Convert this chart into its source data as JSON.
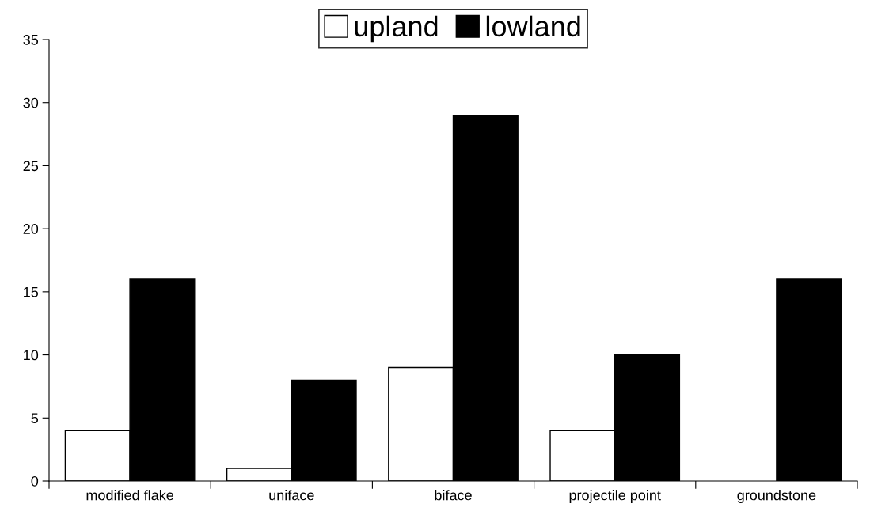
{
  "chart_data": {
    "type": "bar",
    "categories": [
      "modified flake",
      "uniface",
      "biface",
      "projectile point",
      "groundstone"
    ],
    "series": [
      {
        "name": "upland",
        "color": "#ffffff",
        "values": [
          4,
          1,
          9,
          4,
          0
        ]
      },
      {
        "name": "lowland",
        "color": "#000000",
        "values": [
          16,
          8,
          29,
          10,
          16
        ]
      }
    ],
    "ylim": [
      0,
      35
    ],
    "yticks": [
      0,
      5,
      10,
      15,
      20,
      25,
      30,
      35
    ],
    "grid": false,
    "legend": "top"
  }
}
